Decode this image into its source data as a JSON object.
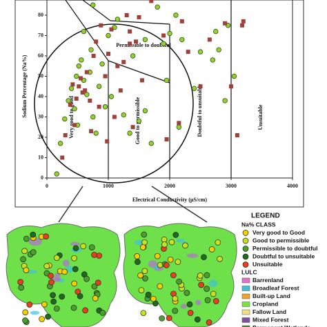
{
  "chart_data": {
    "type": "scatter",
    "x_label": "Electrical Conductivity  (µS/cm)",
    "y_label": "Sodium Percentage (Na%)",
    "xlim": [
      0,
      4000
    ],
    "xticks": [
      0,
      1000,
      2000,
      3000,
      4000
    ],
    "ylim": [
      0,
      90
    ],
    "yticks": [
      0,
      10,
      20,
      30,
      40,
      50,
      60,
      70,
      80
    ],
    "annotations": [
      "Very good to good",
      "Good to permissible",
      "Permissible to doubtful",
      "Doubtful to unsuitable",
      "Unsuitable"
    ],
    "series": [
      {
        "color": "#9acd32",
        "marker": "circle",
        "x": [
          160,
          220,
          290,
          350,
          400,
          450,
          480,
          500,
          520,
          560,
          600,
          650,
          700,
          720,
          750,
          800,
          850,
          900,
          950,
          1000,
          1050,
          1150,
          1250,
          1350,
          1400,
          1500,
          1600,
          1700,
          1800,
          1900,
          2100,
          2200,
          2400,
          2500,
          2700,
          2750,
          2800,
          2950,
          3050,
          2900,
          2150,
          2000,
          1950,
          1600,
          1100,
          750,
          600
        ],
        "y": [
          2,
          17,
          29,
          38,
          44,
          34,
          50,
          26,
          55,
          58,
          48,
          41,
          52,
          63,
          30,
          22,
          45,
          56,
          35,
          70,
          40,
          78,
          31,
          22,
          60,
          28,
          33,
          17,
          84,
          66,
          80,
          68,
          44,
          62,
          58,
          72,
          63,
          75,
          50,
          38,
          25,
          71,
          48,
          68,
          74,
          85,
          72
        ]
      },
      {
        "color": "#a0403a",
        "marker": "square",
        "x": [
          250,
          300,
          380,
          420,
          450,
          480,
          520,
          550,
          580,
          620,
          650,
          700,
          720,
          760,
          800,
          850,
          880,
          950,
          1000,
          1050,
          1150,
          1200,
          1250,
          1300,
          1350,
          1400,
          1450,
          1500,
          1550,
          1700,
          1900,
          1950,
          2150,
          2200,
          2300,
          2500,
          2650,
          2900,
          3000,
          3100,
          3200,
          3180,
          1350,
          980,
          1100
        ],
        "y": [
          10,
          21,
          36,
          46,
          26,
          39,
          45,
          49,
          42,
          43,
          52,
          38,
          23,
          60,
          67,
          35,
          75,
          50,
          61,
          73,
          55,
          43,
          57,
          80,
          72,
          25,
          67,
          79,
          48,
          87,
          70,
          19,
          27,
          77,
          62,
          45,
          68,
          76,
          45,
          21,
          77,
          75,
          66,
          18,
          30
        ]
      }
    ]
  },
  "legend": {
    "title": "LEGEND",
    "groups": [
      {
        "title": "Na% CLASS",
        "items": [
          {
            "label": "Very good to Good",
            "color": "#f5d000",
            "shape": "circle"
          },
          {
            "label": "Good to permissible",
            "color": "#c8e020",
            "shape": "circle"
          },
          {
            "label": "Permissible to doubtful",
            "color": "#4aa02a",
            "shape": "circle"
          },
          {
            "label": "Doubtful to unsuitable",
            "color": "#1e6a1e",
            "shape": "circle"
          },
          {
            "label": "Unsuitable",
            "color": "#e8401c",
            "shape": "circle"
          }
        ]
      },
      {
        "title": "LULC",
        "items": [
          {
            "label": "Barrenland",
            "color": "#e070c8",
            "shape": "rect"
          },
          {
            "label": "Broadleaf Forest",
            "color": "#40c0d8",
            "shape": "rect"
          },
          {
            "label": "Built-up Land",
            "color": "#f0a030",
            "shape": "rect"
          },
          {
            "label": "Cropland",
            "color": "#7ce040",
            "shape": "rect"
          },
          {
            "label": "Fallow Land",
            "color": "#f0e080",
            "shape": "rect"
          },
          {
            "label": "Mixed Forest",
            "color": "#8050a0",
            "shape": "rect"
          },
          {
            "label": "Permanent Wetlands",
            "color": "#508040",
            "shape": "rect"
          }
        ]
      }
    ]
  }
}
